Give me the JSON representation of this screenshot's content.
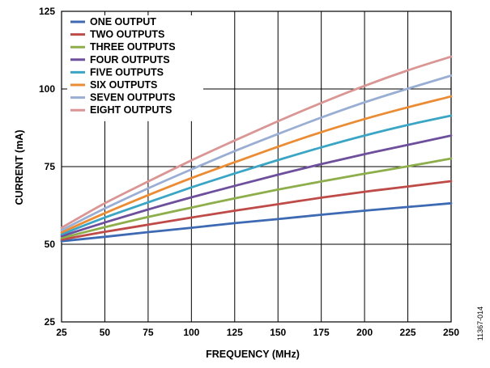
{
  "chart_data": {
    "type": "line",
    "title": "",
    "xlabel": "FREQUENCY (MHz)",
    "ylabel": "CURRENT (mA)",
    "xlim": [
      25,
      250
    ],
    "ylim": [
      25,
      125
    ],
    "x_ticks": [
      25,
      50,
      75,
      100,
      125,
      150,
      175,
      200,
      225,
      250
    ],
    "y_ticks": [
      25,
      50,
      75,
      100,
      125
    ],
    "grid": true,
    "legend_position": "top-left",
    "x": [
      25,
      50,
      75,
      100,
      125,
      150,
      175,
      200,
      225,
      250
    ],
    "series": [
      {
        "name": "ONE OUTPUT",
        "color": "#3d6ab3",
        "values": [
          51.0,
          52.4,
          53.9,
          55.3,
          56.8,
          58.1,
          59.5,
          60.8,
          62.0,
          63.2
        ]
      },
      {
        "name": "TWO OUTPUTS",
        "color": "#be4b48",
        "values": [
          51.5,
          54.0,
          56.3,
          58.6,
          60.8,
          62.9,
          65.0,
          66.9,
          68.6,
          70.3
        ]
      },
      {
        "name": "THREE OUTPUTS",
        "color": "#8dae4a",
        "values": [
          52.0,
          55.5,
          58.8,
          61.8,
          64.8,
          67.6,
          70.2,
          72.7,
          75.1,
          77.6
        ]
      },
      {
        "name": "FOUR OUTPUTS",
        "color": "#6d4f9c",
        "values": [
          52.6,
          57.0,
          61.2,
          65.1,
          68.8,
          72.4,
          75.8,
          79.0,
          82.0,
          85.0
        ]
      },
      {
        "name": "FIVE OUTPUTS",
        "color": "#3aa5c4",
        "values": [
          53.2,
          58.6,
          63.5,
          68.3,
          72.8,
          77.1,
          81.2,
          85.0,
          88.4,
          91.4
        ]
      },
      {
        "name": "SIX OUTPUTS",
        "color": "#eb8c34",
        "values": [
          53.8,
          60.0,
          65.8,
          71.3,
          76.4,
          81.4,
          86.1,
          90.3,
          94.1,
          97.6
        ]
      },
      {
        "name": "SEVEN OUTPUTS",
        "color": "#9aaed4",
        "values": [
          54.5,
          61.5,
          68.0,
          74.1,
          80.0,
          85.5,
          90.8,
          95.7,
          100.1,
          104.3
        ]
      },
      {
        "name": "EIGHT OUTPUTS",
        "color": "#d99694",
        "values": [
          55.3,
          63.2,
          70.2,
          77.0,
          83.4,
          89.6,
          95.5,
          101.0,
          106.0,
          110.4
        ]
      }
    ]
  },
  "figure_id": "11367-014"
}
